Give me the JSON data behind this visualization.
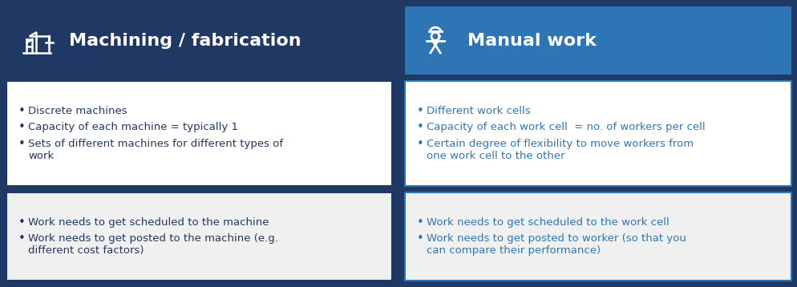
{
  "left_header": "Machining / fabrication",
  "right_header": "Manual work",
  "dark_navy": "#1F3864",
  "medium_blue": "#2E75B6",
  "white": "#FFFFFF",
  "light_gray": "#F0F0F0",
  "bullet_color_left": "#1F3864",
  "bullet_color_right": "#2E75B6",
  "left_bullets_top": [
    "Discrete machines",
    "Capacity of each machine = typically 1",
    "Sets of different machines for different types of\nwork"
  ],
  "left_bullets_bottom": [
    "Work needs to get scheduled to the machine",
    "Work needs to get posted to the machine (e.g.\ndifferent cost factors)"
  ],
  "right_bullets_top": [
    "Different work cells",
    "Capacity of each work cell  = no. of workers per cell",
    "Certain degree of flexibility to move workers from\none work cell to the other"
  ],
  "right_bullets_bottom": [
    "Work needs to get scheduled to the work cell",
    "Work needs to get posted to worker (so that you\ncan compare their performance)"
  ],
  "header_fontsize": 16,
  "bullet_fontsize": 9.5
}
